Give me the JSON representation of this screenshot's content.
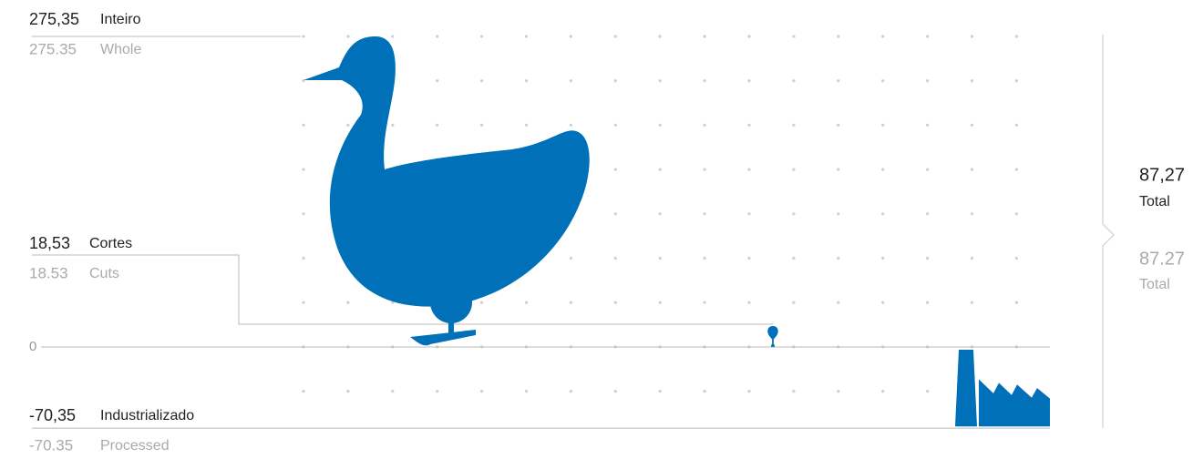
{
  "chart_data": {
    "type": "pictogram",
    "categories": [
      "Inteiro",
      "Cortes",
      "Industrializado"
    ],
    "categories_en": [
      "Whole",
      "Cuts",
      "Processed"
    ],
    "values": [
      275.35,
      18.53,
      -70.35
    ],
    "value_labels": [
      "275,35",
      "18,53",
      "-70,35"
    ],
    "value_labels_en": [
      "275.35",
      "18.53",
      "-70.35"
    ],
    "color": "#0070b8",
    "ylim": [
      -75,
      280
    ],
    "yticks": [
      0
    ],
    "grid": true,
    "total": {
      "value": 87.27,
      "label": "87,27",
      "label_en": "87.27",
      "name": "Total",
      "name_en": "Total"
    }
  }
}
